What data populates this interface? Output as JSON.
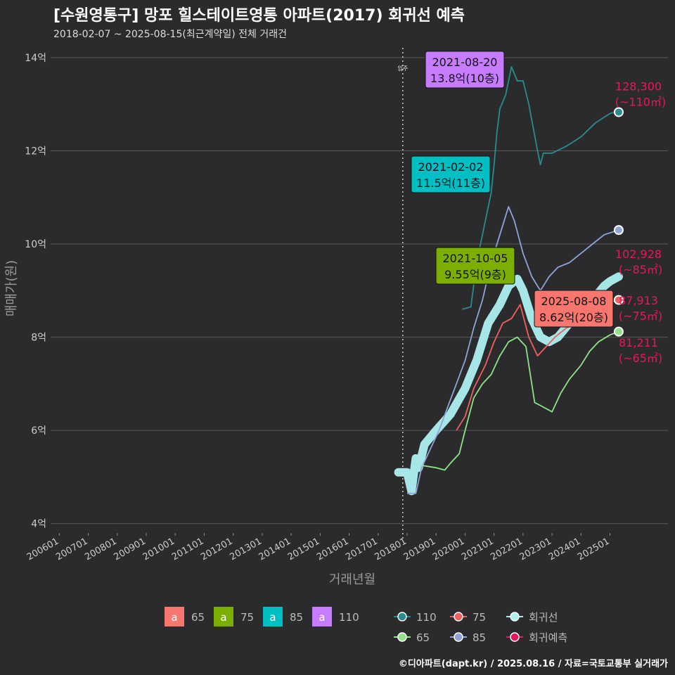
{
  "title": "[수원영통구] 망포 힐스테이트영통 아파트(2017) 회귀선 예측",
  "subtitle": "2018-02-07 ~ 2025-08-15(최근계약일) 전체 거래건",
  "caption": "©디아파트(dapt.kr) / 2025.08.16 / 자료=국토교통부 실거래가",
  "colors": {
    "c65": "#f8766d",
    "c75": "#7cae00",
    "c85": "#00bfc4",
    "c110": "#c77cff",
    "l110": "#2a8c8e",
    "l65": "#8fe388",
    "l75": "#f06060",
    "l85": "#8fa3d8",
    "reg": "#aef0f0",
    "pred": "#e8175d"
  },
  "chart_data": {
    "type": "line",
    "xlabel": "거래년월",
    "ylabel": "매매가(원)",
    "ylim": [
      3.8,
      14.3
    ],
    "y_ticks": [
      {
        "v": 4,
        "label": "4억"
      },
      {
        "v": 6,
        "label": "6억"
      },
      {
        "v": 8,
        "label": "8억"
      },
      {
        "v": 10,
        "label": "10억"
      },
      {
        "v": 12,
        "label": "12억"
      },
      {
        "v": 14,
        "label": "14억"
      }
    ],
    "x_range": [
      2005.7,
      2027.0
    ],
    "x_ticks": [
      {
        "v": 2006,
        "label": "200601"
      },
      {
        "v": 2007,
        "label": "200701"
      },
      {
        "v": 2008,
        "label": "200801"
      },
      {
        "v": 2009,
        "label": "200901"
      },
      {
        "v": 2010,
        "label": "201001"
      },
      {
        "v": 2011,
        "label": "201101"
      },
      {
        "v": 2012,
        "label": "201201"
      },
      {
        "v": 2013,
        "label": "201301"
      },
      {
        "v": 2014,
        "label": "201401"
      },
      {
        "v": 2015,
        "label": "201501"
      },
      {
        "v": 2016,
        "label": "201601"
      },
      {
        "v": 2017,
        "label": "201701"
      },
      {
        "v": 2018,
        "label": "201801"
      },
      {
        "v": 2019,
        "label": "201901"
      },
      {
        "v": 2020,
        "label": "202001"
      },
      {
        "v": 2021,
        "label": "202101"
      },
      {
        "v": 2022,
        "label": "202201"
      },
      {
        "v": 2023,
        "label": "202301"
      },
      {
        "v": 2024,
        "label": "202401"
      },
      {
        "v": 2025,
        "label": "202501"
      }
    ],
    "move_in": {
      "x": 2017.85,
      "label": "입주"
    },
    "series": [
      {
        "name": "110",
        "key": "l110",
        "points": [
          [
            2019.9,
            8.6
          ],
          [
            2020.2,
            8.65
          ],
          [
            2020.4,
            9.6
          ],
          [
            2020.7,
            10.5
          ],
          [
            2020.9,
            11.1
          ],
          [
            2021.0,
            11.7
          ],
          [
            2021.1,
            12.4
          ],
          [
            2021.2,
            12.9
          ],
          [
            2021.4,
            13.2
          ],
          [
            2021.6,
            13.8
          ],
          [
            2021.8,
            13.5
          ],
          [
            2022.0,
            13.5
          ],
          [
            2022.2,
            13.0
          ],
          [
            2022.5,
            12.0
          ],
          [
            2022.6,
            11.7
          ],
          [
            2022.7,
            11.95
          ],
          [
            2023.0,
            11.95
          ],
          [
            2023.5,
            12.1
          ],
          [
            2024.0,
            12.3
          ],
          [
            2024.5,
            12.6
          ],
          [
            2025.0,
            12.8
          ],
          [
            2025.3,
            12.85
          ]
        ]
      },
      {
        "name": "65",
        "key": "l65",
        "points": [
          [
            2018.5,
            5.25
          ],
          [
            2019.0,
            5.2
          ],
          [
            2019.3,
            5.15
          ],
          [
            2019.5,
            5.3
          ],
          [
            2019.8,
            5.5
          ],
          [
            2020.0,
            6.0
          ],
          [
            2020.3,
            6.7
          ],
          [
            2020.6,
            7.0
          ],
          [
            2020.9,
            7.2
          ],
          [
            2021.2,
            7.6
          ],
          [
            2021.5,
            7.9
          ],
          [
            2021.8,
            8.0
          ],
          [
            2022.1,
            7.8
          ],
          [
            2022.4,
            6.6
          ],
          [
            2022.7,
            6.5
          ],
          [
            2023.0,
            6.4
          ],
          [
            2023.3,
            6.8
          ],
          [
            2023.6,
            7.1
          ],
          [
            2024.0,
            7.4
          ],
          [
            2024.3,
            7.7
          ],
          [
            2024.6,
            7.9
          ],
          [
            2025.0,
            8.05
          ],
          [
            2025.3,
            8.12
          ]
        ]
      },
      {
        "name": "75",
        "key": "l75",
        "points": [
          [
            2019.7,
            6.0
          ],
          [
            2020.0,
            6.3
          ],
          [
            2020.3,
            6.9
          ],
          [
            2020.7,
            7.4
          ],
          [
            2021.0,
            7.9
          ],
          [
            2021.3,
            8.3
          ],
          [
            2021.6,
            8.4
          ],
          [
            2021.9,
            8.7
          ],
          [
            2022.2,
            8.0
          ],
          [
            2022.5,
            7.6
          ],
          [
            2022.8,
            7.8
          ],
          [
            2023.1,
            8.0
          ],
          [
            2023.5,
            8.2
          ],
          [
            2023.9,
            8.3
          ],
          [
            2024.2,
            8.5
          ],
          [
            2024.6,
            8.7
          ],
          [
            2025.0,
            8.75
          ],
          [
            2025.3,
            8.8
          ]
        ]
      },
      {
        "name": "85",
        "key": "l85",
        "points": [
          [
            2018.0,
            4.65
          ],
          [
            2018.3,
            4.65
          ],
          [
            2018.5,
            5.2
          ],
          [
            2018.8,
            5.6
          ],
          [
            2019.1,
            6.0
          ],
          [
            2019.4,
            6.5
          ],
          [
            2019.7,
            7.0
          ],
          [
            2020.0,
            7.5
          ],
          [
            2020.3,
            8.2
          ],
          [
            2020.6,
            8.8
          ],
          [
            2020.9,
            9.6
          ],
          [
            2021.2,
            10.2
          ],
          [
            2021.5,
            10.8
          ],
          [
            2021.7,
            10.5
          ],
          [
            2022.0,
            9.8
          ],
          [
            2022.3,
            9.3
          ],
          [
            2022.6,
            9.0
          ],
          [
            2022.9,
            9.3
          ],
          [
            2023.2,
            9.5
          ],
          [
            2023.6,
            9.6
          ],
          [
            2024.0,
            9.8
          ],
          [
            2024.4,
            10.0
          ],
          [
            2024.8,
            10.2
          ],
          [
            2025.3,
            10.3
          ]
        ]
      },
      {
        "name": "회귀선",
        "key": "reg",
        "points": [
          [
            2017.7,
            5.1
          ],
          [
            2018.0,
            5.1
          ],
          [
            2018.15,
            4.7
          ],
          [
            2018.3,
            5.4
          ],
          [
            2018.4,
            5.2
          ],
          [
            2018.6,
            5.7
          ],
          [
            2019.0,
            6.0
          ],
          [
            2019.5,
            6.35
          ],
          [
            2020.0,
            6.9
          ],
          [
            2020.4,
            7.5
          ],
          [
            2020.8,
            8.3
          ],
          [
            2021.2,
            8.7
          ],
          [
            2021.5,
            9.1
          ],
          [
            2021.8,
            9.25
          ],
          [
            2022.0,
            9.0
          ],
          [
            2022.3,
            8.4
          ],
          [
            2022.6,
            8.0
          ],
          [
            2022.9,
            7.9
          ],
          [
            2023.2,
            8.0
          ],
          [
            2023.6,
            8.3
          ],
          [
            2024.0,
            8.5
          ],
          [
            2024.4,
            8.8
          ],
          [
            2024.8,
            9.1
          ],
          [
            2025.0,
            9.2
          ],
          [
            2025.3,
            9.3
          ]
        ]
      }
    ],
    "endpoints": [
      {
        "key": "l110",
        "x": 2025.3,
        "y": 12.83
      },
      {
        "key": "l85",
        "x": 2025.3,
        "y": 10.3
      },
      {
        "key": "l75",
        "x": 2025.3,
        "y": 8.8
      },
      {
        "key": "l65",
        "x": 2025.3,
        "y": 8.12
      }
    ],
    "predictions": [
      {
        "price": "128,300",
        "area": "(~110㎡)",
        "y": 12.83,
        "ly": 13.3
      },
      {
        "price": "102,928",
        "area": "(~85㎡)",
        "y": 10.3,
        "ly": 9.7
      },
      {
        "price": "87,913",
        "area": "(~75㎡)",
        "y": 8.8,
        "ly": 8.7
      },
      {
        "price": "81,211",
        "area": "(~65㎡)",
        "y": 8.12,
        "ly": 7.8
      }
    ],
    "callouts": [
      {
        "type": "110",
        "date": "2021-08-20",
        "value": "13.8억(10층)",
        "x": 2021.6,
        "y": 13.8
      },
      {
        "type": "85",
        "date": "2021-02-02",
        "value": "11.5억(11층)",
        "x": 2021.05,
        "y": 11.5
      },
      {
        "type": "75",
        "date": "2021-10-05",
        "value": "9.55억(9층)",
        "x": 2021.7,
        "y": 9.55
      },
      {
        "type": "65",
        "date": "2025-08-08",
        "value": "8.62억(20층)",
        "x": 2025.3,
        "y": 8.62
      }
    ],
    "legend_area": [
      {
        "key": "c65",
        "glyph": "a",
        "label": "65"
      },
      {
        "key": "c75",
        "glyph": "a",
        "label": "75"
      },
      {
        "key": "c85",
        "glyph": "a",
        "label": "85"
      },
      {
        "key": "c110",
        "glyph": "a",
        "label": "110"
      }
    ],
    "legend_lines": [
      {
        "key": "l110",
        "label": "110"
      },
      {
        "key": "l75",
        "label": "75"
      },
      {
        "key": "reg",
        "label": "회귀선"
      },
      {
        "key": "l65",
        "label": "65"
      },
      {
        "key": "l85",
        "label": "85"
      },
      {
        "key": "pred",
        "label": "회귀예측"
      }
    ]
  }
}
